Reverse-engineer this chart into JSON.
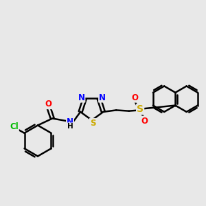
{
  "bg_color": "#e8e8e8",
  "bond_color": "#000000",
  "bond_width": 1.8,
  "atom_colors": {
    "N": "#0000ff",
    "O": "#ff0000",
    "S_thiad": "#ccaa00",
    "S_sulfonyl": "#ccaa00",
    "Cl": "#00bb00",
    "C": "#000000"
  },
  "font_size": 8.5,
  "fig_width": 3.0,
  "fig_height": 3.0,
  "dpi": 100,
  "xlim": [
    0,
    12
  ],
  "ylim": [
    0,
    12
  ]
}
